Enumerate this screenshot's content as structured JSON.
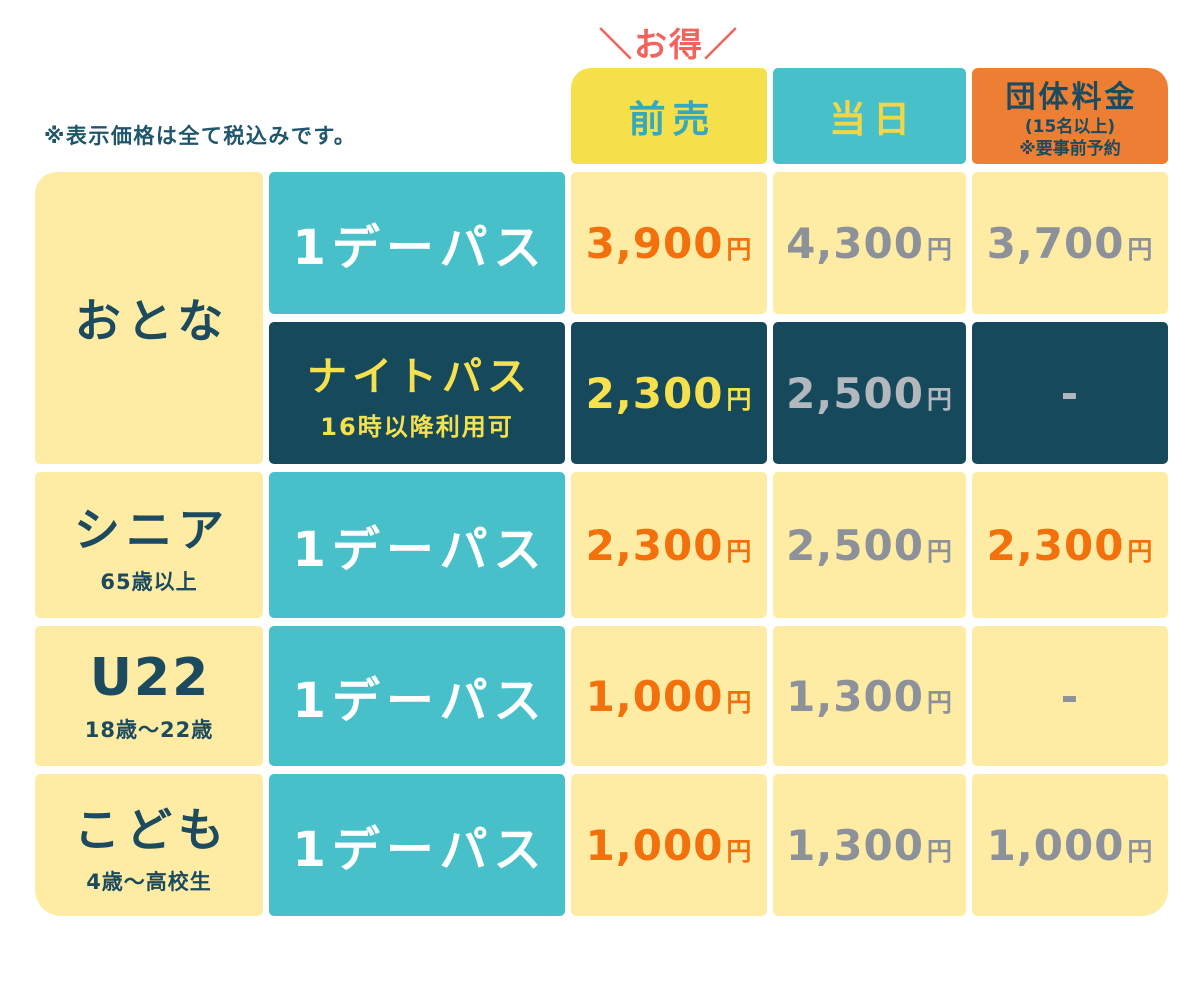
{
  "note": "※表示価格は全て税込みです。",
  "deal_label": "＼お得／",
  "header": {
    "advance": {
      "label": "前売"
    },
    "same_day": {
      "label": "当日"
    },
    "group": {
      "label": "団体料金",
      "sub1": "(15名以上)",
      "sub2": "※要事前予約"
    }
  },
  "categories": {
    "adult": {
      "label": "おとな"
    },
    "senior": {
      "label": "シニア",
      "sub": "65歳以上"
    },
    "u22": {
      "label": "U22",
      "sub": "18歳～22歳"
    },
    "child": {
      "label": "こども",
      "sub": "4歳～高校生"
    }
  },
  "passes": {
    "one_day": "1デーパス",
    "night": {
      "label": "ナイトパス",
      "sub": "16時以降利用可"
    }
  },
  "yen": "円",
  "prices": {
    "adult_day": {
      "advance": "3,900",
      "same_day": "4,300",
      "group": "3,700"
    },
    "adult_night": {
      "advance": "2,300",
      "same_day": "2,500",
      "group": "-"
    },
    "senior_day": {
      "advance": "2,300",
      "same_day": "2,500",
      "group": "2,300"
    },
    "u22_day": {
      "advance": "1,000",
      "same_day": "1,300",
      "group": "-"
    },
    "child_day": {
      "advance": "1,000",
      "same_day": "1,300",
      "group": "1,000"
    }
  },
  "colors": {
    "cream_bg": "#FFECA4",
    "teal_bg": "#48C0CA",
    "navy_bg": "#16495C",
    "header_yellow_bg": "#F5DF4A",
    "header_orange_bg": "#EC7F33",
    "deal_coral": "#F3625B",
    "navy_text": "#1C4A5E",
    "advance_label_teal": "#36A8BB",
    "same_day_label_yellow": "#F2D647",
    "price_orange": "#F2710D",
    "price_gray": "#8D9199",
    "price_lightgray_on_navy": "#B2B8BD",
    "price_yellow_on_navy": "#F5E04D"
  },
  "chart_data": {
    "type": "table",
    "note": "※表示価格は全て税込みです。",
    "columns": [
      "前売",
      "当日",
      "団体料金 (15名以上) ※要事前予約"
    ],
    "rows": [
      {
        "category": "おとな",
        "pass": "1デーパス",
        "advance": "3,900円",
        "same_day": "4,300円",
        "group": "3,700円"
      },
      {
        "category": "おとな",
        "pass": "ナイトパス 16時以降利用可",
        "advance": "2,300円",
        "same_day": "2,500円",
        "group": "-"
      },
      {
        "category": "シニア 65歳以上",
        "pass": "1デーパス",
        "advance": "2,300円",
        "same_day": "2,500円",
        "group": "2,300円"
      },
      {
        "category": "U22 18歳～22歳",
        "pass": "1デーパス",
        "advance": "1,000円",
        "same_day": "1,300円",
        "group": "-"
      },
      {
        "category": "こども 4歳～高校生",
        "pass": "1デーパス",
        "advance": "1,000円",
        "same_day": "1,300円",
        "group": "1,000円"
      }
    ]
  }
}
